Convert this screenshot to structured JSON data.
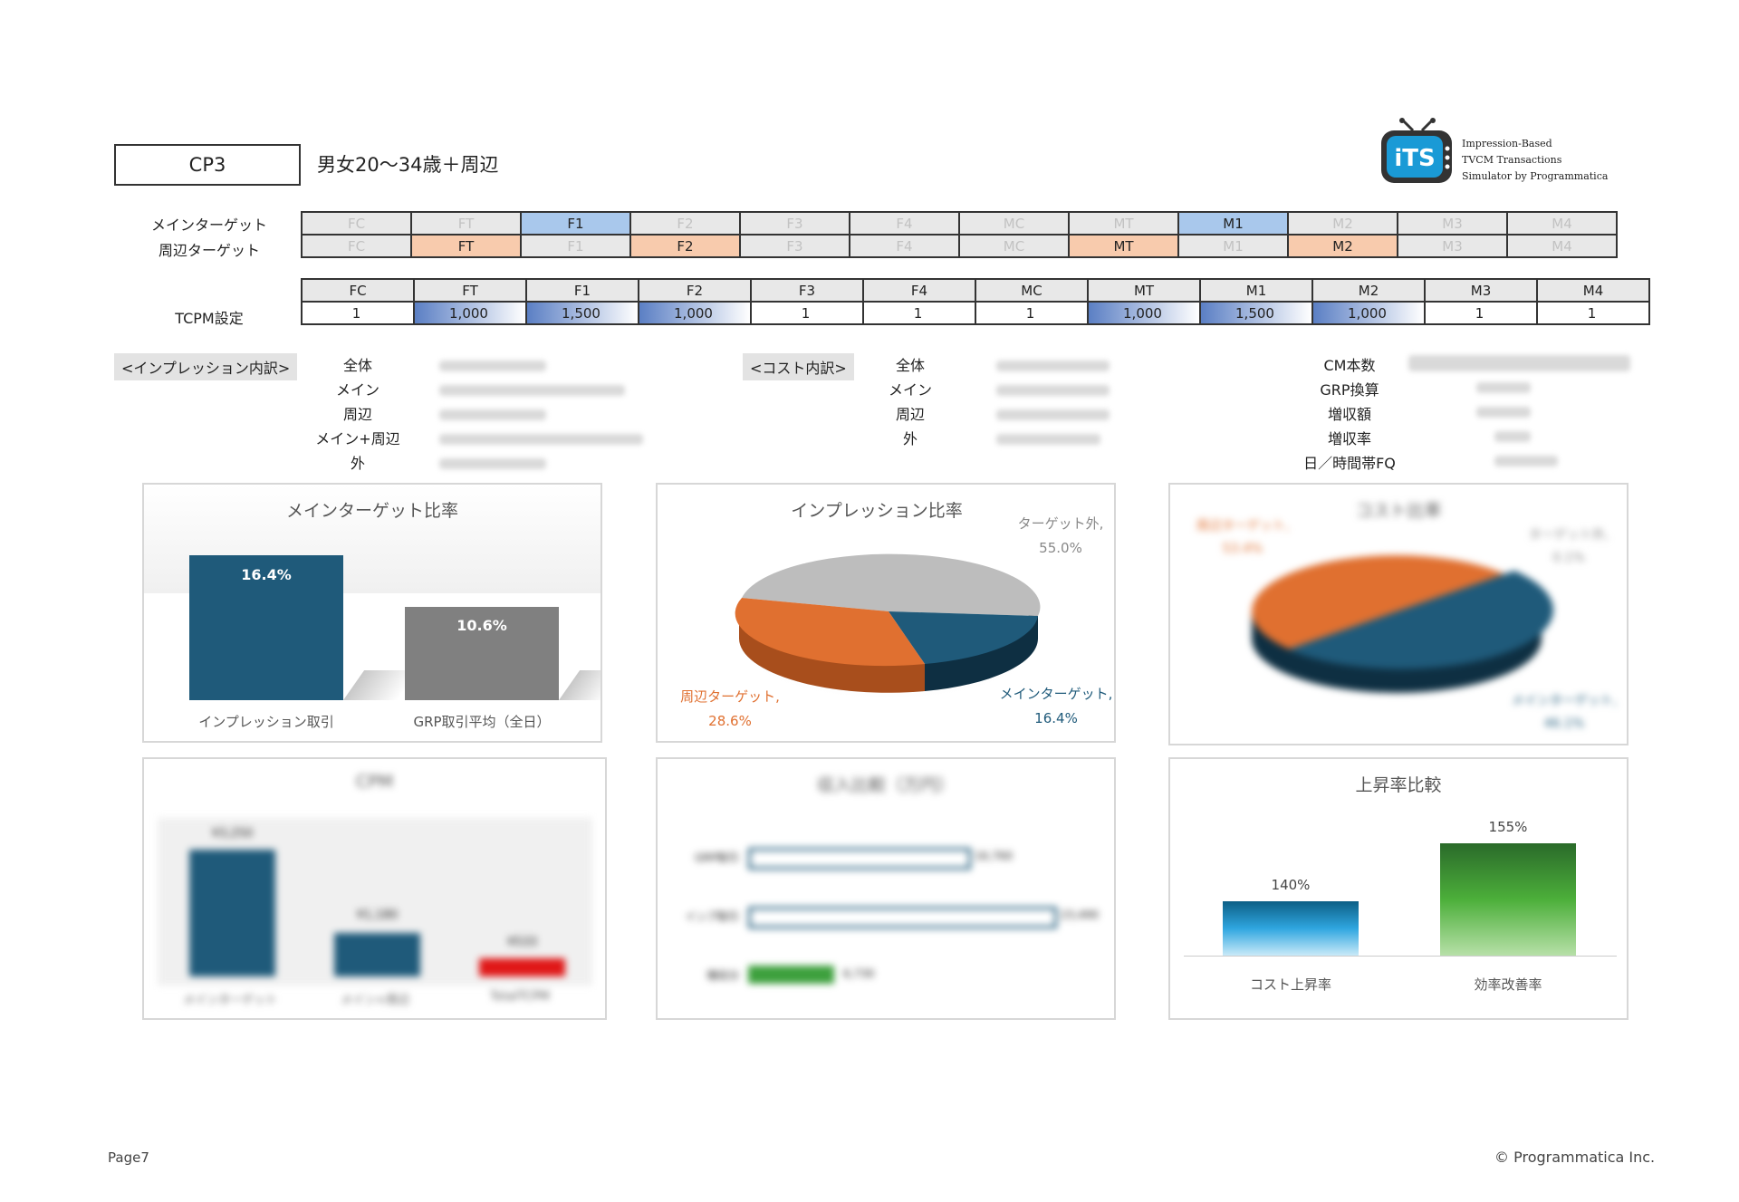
{
  "header": {
    "cp_label": "CP3",
    "target_title": "男女20～34歳＋周辺",
    "logo_lines": [
      "Impression-Based",
      "TVCM Transactions",
      "Simulator by Programmatica"
    ],
    "logo_mark": "iTS"
  },
  "segments": [
    "FC",
    "FT",
    "F1",
    "F2",
    "F3",
    "F4",
    "MC",
    "MT",
    "M1",
    "M2",
    "M3",
    "M4"
  ],
  "main_target": {
    "label": "メインターゲット",
    "active": [
      "F1",
      "M1"
    ]
  },
  "sub_target": {
    "label": "周辺ターゲット",
    "active": [
      "FT",
      "F2",
      "MT",
      "M2"
    ]
  },
  "tcpm": {
    "label": "TCPM設定",
    "values": [
      "1",
      "1,000",
      "1,500",
      "1,000",
      "1",
      "1",
      "1",
      "1,000",
      "1,500",
      "1,000",
      "1",
      "1"
    ]
  },
  "impression_breakdown": {
    "title": "<インプレッション内訳>",
    "rows": [
      "全体",
      "メイン",
      "周辺",
      "メイン+周辺",
      "外"
    ]
  },
  "cost_breakdown": {
    "title": "<コスト内訳>",
    "rows": [
      "全体",
      "メイン",
      "周辺",
      "外"
    ]
  },
  "summary": {
    "rows": [
      "CM本数",
      "GRP換算",
      "増収額",
      "増収率",
      "日／時間帯FQ"
    ]
  },
  "colors": {
    "navy": "#1f5a7a",
    "orange": "#e07030",
    "gray": "#808080",
    "red": "#e01818",
    "green": "#3da03d"
  },
  "charts": {
    "main_ratio": {
      "title": "メインターゲット比率",
      "categories": [
        "インプレッション取引",
        "GRP取引平均（全日）"
      ],
      "value_labels": [
        "16.4%",
        "10.6%"
      ]
    },
    "impression_ratio": {
      "title": "インプレッション比率",
      "labels": [
        {
          "name": "ターゲット外,",
          "pct": "55.0%"
        },
        {
          "name": "周辺ターゲット,",
          "pct": "28.6%"
        },
        {
          "name": "メインターゲット,",
          "pct": "16.4%"
        }
      ]
    },
    "cost_ratio": {
      "title": "コスト比率",
      "labels": [
        {
          "name": "周辺ターゲット,",
          "pct": "53.4%"
        },
        {
          "name": "ターゲット外,",
          "pct": "0.1%"
        },
        {
          "name": "メインターゲット,",
          "pct": "46.1%"
        }
      ]
    },
    "cpm": {
      "title": "CPM",
      "categories": [
        "メインターゲット",
        "メイン+周辺",
        "TotalTCPM"
      ],
      "value_labels": [
        "¥3,250",
        "¥1,180",
        "¥533"
      ]
    },
    "revenue": {
      "title": "収入比較（万円）",
      "categories": [
        "GRP取引",
        "インプ取引",
        "増収分"
      ],
      "value_labels": [
        "16,760",
        "23,490",
        "6,730"
      ]
    },
    "growth": {
      "title": "上昇率比較",
      "categories": [
        "コスト上昇率",
        "効率改善率"
      ],
      "value_labels": [
        "140%",
        "155%"
      ]
    }
  },
  "chart_data": [
    {
      "type": "bar",
      "title": "メインターゲット比率",
      "categories": [
        "インプレッション取引",
        "GRP取引平均（全日）"
      ],
      "values": [
        16.4,
        10.6
      ],
      "unit": "%"
    },
    {
      "type": "pie",
      "title": "インプレッション比率",
      "categories": [
        "ターゲット外",
        "周辺ターゲット",
        "メインターゲット"
      ],
      "values": [
        55.0,
        28.6,
        16.4
      ]
    },
    {
      "type": "pie",
      "title": "コスト比率",
      "categories": [
        "周辺ターゲット",
        "ターゲット外",
        "メインターゲット"
      ],
      "values": [
        53.4,
        0.1,
        46.1
      ]
    },
    {
      "type": "bar",
      "title": "CPM",
      "categories": [
        "メインターゲット",
        "メイン+周辺",
        "TotalTCPM"
      ],
      "values": [
        3250,
        1180,
        533
      ]
    },
    {
      "type": "bar",
      "title": "収入比較（万円）",
      "categories": [
        "GRP取引",
        "インプ取引",
        "増収分"
      ],
      "values": [
        16760,
        23490,
        6730
      ]
    },
    {
      "type": "bar",
      "title": "上昇率比較",
      "categories": [
        "コスト上昇率",
        "効率改善率"
      ],
      "values": [
        140,
        155
      ],
      "unit": "%"
    }
  ],
  "footer": {
    "page": "Page7",
    "copyright": "Programmatica Inc.",
    "copyright_symbol": "©"
  }
}
